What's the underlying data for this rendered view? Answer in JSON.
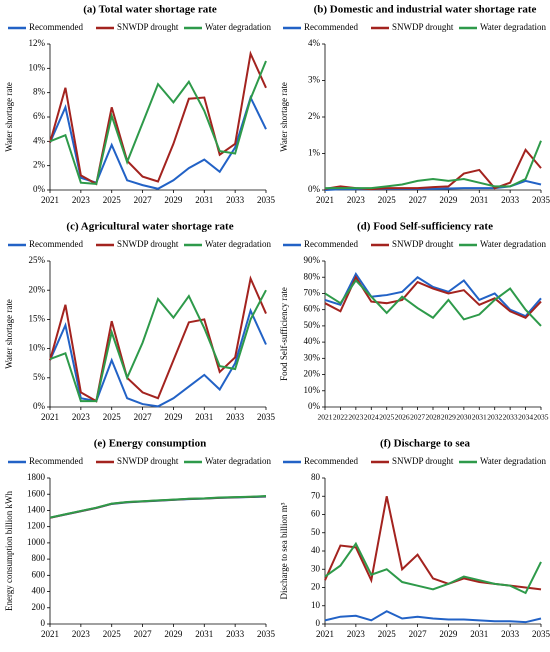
{
  "chart_data": [
    {
      "type": "line",
      "title": "(a) Total water shortage rate",
      "ylabel": "Water shortage rate",
      "x": [
        2021,
        2022,
        2023,
        2024,
        2025,
        2026,
        2027,
        2028,
        2029,
        2030,
        2031,
        2032,
        2033,
        2034,
        2035
      ],
      "xlim": [
        2021,
        2035
      ],
      "xticks": [
        2021,
        2023,
        2025,
        2027,
        2029,
        2031,
        2033,
        2035
      ],
      "ylim": [
        0,
        12
      ],
      "yticks": [
        {
          "value": 0,
          "label": "0%"
        },
        {
          "value": 2,
          "label": "2%"
        },
        {
          "value": 4,
          "label": "4%"
        },
        {
          "value": 6,
          "label": "6%"
        },
        {
          "value": 8,
          "label": "8%"
        },
        {
          "value": 10,
          "label": "10%"
        },
        {
          "value": 12,
          "label": "12%"
        }
      ],
      "series": [
        {
          "name": "Recommended",
          "color": "#2262c6",
          "values": [
            3.9,
            6.8,
            1.0,
            0.6,
            3.7,
            0.8,
            0.4,
            0.1,
            0.8,
            1.8,
            2.5,
            1.5,
            3.5,
            7.6,
            5.0
          ]
        },
        {
          "name": "SNWDP drought",
          "color": "#a3231f",
          "values": [
            3.9,
            8.4,
            1.2,
            0.5,
            6.8,
            2.4,
            1.1,
            0.7,
            3.8,
            7.5,
            7.6,
            2.9,
            3.8,
            11.2,
            8.4
          ]
        },
        {
          "name": "Water degradation",
          "color": "#2e9a4a",
          "values": [
            4.0,
            4.5,
            0.6,
            0.5,
            6.1,
            2.3,
            5.5,
            8.7,
            7.2,
            8.9,
            6.5,
            3.2,
            3.0,
            7.5,
            10.6
          ]
        }
      ]
    },
    {
      "type": "line",
      "title": "(b) Domestic and industrial water shortage rate",
      "ylabel": "Water  shortage rate",
      "x": [
        2021,
        2022,
        2023,
        2024,
        2025,
        2026,
        2027,
        2028,
        2029,
        2030,
        2031,
        2032,
        2033,
        2034,
        2035
      ],
      "xlim": [
        2021,
        2035
      ],
      "xticks": [
        2021,
        2023,
        2025,
        2027,
        2029,
        2031,
        2033,
        2035
      ],
      "ylim": [
        0,
        4
      ],
      "yticks": [
        {
          "value": 0,
          "label": "0%"
        },
        {
          "value": 1,
          "label": "1%"
        },
        {
          "value": 2,
          "label": "2%"
        },
        {
          "value": 3,
          "label": "3%"
        },
        {
          "value": 4,
          "label": "4%"
        }
      ],
      "series": [
        {
          "name": "Recommended",
          "color": "#2262c6",
          "values": [
            0,
            0.02,
            0.02,
            0.02,
            0.03,
            0.03,
            0.03,
            0.03,
            0.04,
            0.05,
            0.05,
            0.05,
            0.1,
            0.25,
            0.15
          ]
        },
        {
          "name": "SNWDP drought",
          "color": "#a3231f",
          "values": [
            0.03,
            0.1,
            0.05,
            0.02,
            0.05,
            0.05,
            0.05,
            0.08,
            0.1,
            0.45,
            0.55,
            0.05,
            0.2,
            1.1,
            0.6
          ]
        },
        {
          "name": "Water degradation",
          "color": "#2e9a4a",
          "values": [
            0.05,
            0.05,
            0.05,
            0.05,
            0.1,
            0.15,
            0.25,
            0.3,
            0.25,
            0.3,
            0.2,
            0.1,
            0.1,
            0.3,
            1.35
          ]
        }
      ]
    },
    {
      "type": "line",
      "title": "(c) Agricultural water shortage rate",
      "ylabel": "Water  shortage rate",
      "x": [
        2021,
        2022,
        2023,
        2024,
        2025,
        2026,
        2027,
        2028,
        2029,
        2030,
        2031,
        2032,
        2033,
        2034,
        2035
      ],
      "xlim": [
        2021,
        2035
      ],
      "xticks": [
        2021,
        2023,
        2025,
        2027,
        2029,
        2031,
        2033,
        2035
      ],
      "ylim": [
        0,
        25
      ],
      "yticks": [
        {
          "value": 0,
          "label": "0%"
        },
        {
          "value": 5,
          "label": "5%"
        },
        {
          "value": 10,
          "label": "10%"
        },
        {
          "value": 15,
          "label": "15%"
        },
        {
          "value": 20,
          "label": "20%"
        },
        {
          "value": 25,
          "label": "25%"
        }
      ],
      "series": [
        {
          "name": "Recommended",
          "color": "#2262c6",
          "values": [
            8,
            14,
            1.5,
            1,
            8,
            1.5,
            0.5,
            0.1,
            1.5,
            3.5,
            5.5,
            3,
            7.5,
            16.5,
            10.7
          ]
        },
        {
          "name": "SNWDP drought",
          "color": "#a3231f",
          "values": [
            8,
            17.5,
            2.5,
            1,
            14.7,
            5,
            2.5,
            1.5,
            8,
            14.5,
            15,
            6,
            8.5,
            22,
            16
          ]
        },
        {
          "name": "Water degradation",
          "color": "#2e9a4a",
          "values": [
            8.2,
            9.2,
            1,
            1,
            12.8,
            5,
            11,
            18.5,
            15.3,
            19,
            13.5,
            7,
            6.5,
            15,
            20
          ]
        }
      ]
    },
    {
      "type": "line",
      "title": "(d) Food  Self-sufficiency rate",
      "ylabel": "Food Self-sufficiency rate",
      "x": [
        2021,
        2022,
        2023,
        2024,
        2025,
        2026,
        2027,
        2028,
        2029,
        2030,
        2031,
        2032,
        2033,
        2034,
        2035
      ],
      "xlim": [
        2021,
        2035
      ],
      "xticks": [
        2021,
        2022,
        2023,
        2024,
        2025,
        2026,
        2027,
        2028,
        2029,
        2030,
        2031,
        2032,
        2033,
        2034,
        2035
      ],
      "ylim": [
        0,
        90
      ],
      "yticks": [
        {
          "value": 0,
          "label": "0%"
        },
        {
          "value": 10,
          "label": "10%"
        },
        {
          "value": 20,
          "label": "20%"
        },
        {
          "value": 30,
          "label": "30%"
        },
        {
          "value": 40,
          "label": "40%"
        },
        {
          "value": 50,
          "label": "50%"
        },
        {
          "value": 60,
          "label": "60%"
        },
        {
          "value": 70,
          "label": "70%"
        },
        {
          "value": 80,
          "label": "80%"
        },
        {
          "value": 90,
          "label": "90%"
        }
      ],
      "series": [
        {
          "name": "Recommended",
          "color": "#2262c6",
          "values": [
            66,
            63,
            82,
            68,
            69,
            71,
            80,
            74,
            71,
            78,
            66,
            70,
            60,
            56,
            67
          ]
        },
        {
          "name": "SNWDP drought",
          "color": "#a3231f",
          "values": [
            64,
            59,
            80,
            65,
            64,
            66,
            77,
            73,
            70,
            72,
            63,
            67,
            59,
            55,
            65
          ]
        },
        {
          "name": "Water degradation",
          "color": "#2e9a4a",
          "values": [
            70,
            64,
            78,
            68,
            58,
            68,
            61,
            55,
            66,
            54,
            57,
            66,
            73,
            60,
            50
          ]
        }
      ]
    },
    {
      "type": "line",
      "title": "(e) Energy consumption",
      "ylabel": "Energy consumption billion kWh",
      "x": [
        2021,
        2022,
        2023,
        2024,
        2025,
        2026,
        2027,
        2028,
        2029,
        2030,
        2031,
        2032,
        2033,
        2034,
        2035
      ],
      "xlim": [
        2021,
        2035
      ],
      "xticks": [
        2021,
        2023,
        2025,
        2027,
        2029,
        2031,
        2033,
        2035
      ],
      "ylim": [
        0,
        1800
      ],
      "yticks": [
        0,
        200,
        400,
        600,
        800,
        1000,
        1200,
        1400,
        1600,
        1800
      ],
      "series": [
        {
          "name": "Recommended",
          "color": "#2262c6",
          "values": [
            1310,
            1350,
            1390,
            1430,
            1480,
            1500,
            1510,
            1520,
            1530,
            1540,
            1545,
            1555,
            1560,
            1565,
            1570
          ]
        },
        {
          "name": "SNWDP drought",
          "color": "#a3231f",
          "values": [
            1310,
            1352,
            1392,
            1432,
            1482,
            1502,
            1512,
            1522,
            1532,
            1542,
            1547,
            1557,
            1562,
            1567,
            1575
          ]
        },
        {
          "name": "Water degradation",
          "color": "#2e9a4a",
          "values": [
            1312,
            1353,
            1394,
            1434,
            1484,
            1504,
            1514,
            1524,
            1534,
            1544,
            1549,
            1559,
            1564,
            1569,
            1578
          ]
        }
      ]
    },
    {
      "type": "line",
      "title": "(f) Discharge to sea",
      "ylabel": "Discharge to sea billion m³",
      "x": [
        2021,
        2022,
        2023,
        2024,
        2025,
        2026,
        2027,
        2028,
        2029,
        2030,
        2031,
        2032,
        2033,
        2034,
        2035
      ],
      "xlim": [
        2021,
        2035
      ],
      "xticks": [
        2021,
        2023,
        2025,
        2027,
        2029,
        2031,
        2033,
        2035
      ],
      "ylim": [
        0,
        80
      ],
      "yticks": [
        0,
        10,
        20,
        30,
        40,
        50,
        60,
        70,
        80
      ],
      "series": [
        {
          "name": "Recommended",
          "color": "#2262c6",
          "values": [
            2,
            4,
            4.5,
            2,
            7,
            3,
            4,
            3,
            2.5,
            2.5,
            2,
            1.5,
            1.5,
            1,
            3
          ]
        },
        {
          "name": "SNWDP drought",
          "color": "#a3231f",
          "values": [
            24,
            43,
            42,
            24,
            70,
            30,
            38,
            25,
            22,
            25,
            23,
            22,
            21,
            20,
            19
          ]
        },
        {
          "name": "Water degradation",
          "color": "#2e9a4a",
          "values": [
            26,
            32,
            44,
            27,
            30,
            23,
            21,
            19,
            22,
            26,
            24,
            22,
            21,
            17,
            34
          ]
        }
      ]
    }
  ]
}
